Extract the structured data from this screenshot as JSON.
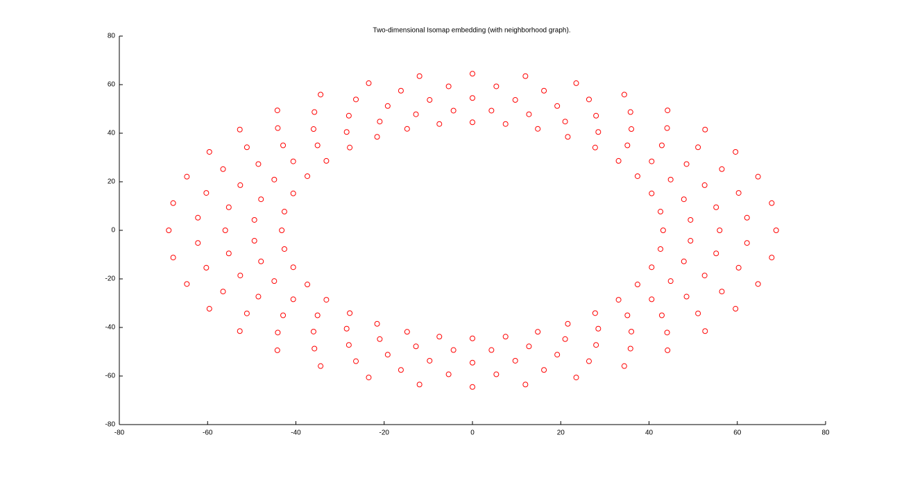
{
  "chart_data": {
    "type": "scatter",
    "title": "Two-dimensional Isomap embedding (with neighborhood graph).",
    "color": "#ff0000",
    "xlim": [
      -80,
      80
    ],
    "xticks": [
      -80,
      -60,
      -40,
      -20,
      0,
      20,
      40,
      60,
      80
    ],
    "ylim": [
      -80,
      80
    ],
    "yticks": [
      -80,
      -60,
      -40,
      -20,
      0,
      20,
      40,
      60,
      80
    ],
    "x": [
      43.2,
      42.6,
      40.6,
      37.4,
      33.1,
      27.8,
      21.6,
      14.8,
      7.5,
      49.4,
      47.9,
      44.9,
      40.6,
      35.1,
      28.5,
      21.0,
      12.8,
      4.3,
      56,
      55.2,
      52.6,
      48.5,
      42.9,
      36.0,
      28.0,
      19.2,
      9.7,
      62.2,
      60.3,
      56.5,
      51.1,
      44.1,
      35.8,
      26.4,
      16.2,
      5.4,
      68.8,
      67.8,
      64.7,
      59.6,
      52.7,
      44.2,
      34.4,
      23.5,
      12.0,
      -43.2,
      -42.6,
      -40.6,
      -37.4,
      -33.1,
      -27.8,
      -21.6,
      -14.8,
      -7.5,
      -49.4,
      -47.9,
      -44.9,
      -40.6,
      -35.1,
      -28.5,
      -21.0,
      -12.8,
      -4.3,
      -56,
      -55.2,
      -52.6,
      -48.5,
      -42.9,
      -36.0,
      -28.0,
      -19.2,
      -9.7,
      -62.2,
      -60.3,
      -56.5,
      -51.1,
      -44.1,
      -35.8,
      -26.4,
      -16.2,
      -5.4,
      -68.8,
      -67.8,
      -64.7,
      -59.6,
      -52.7,
      -44.2,
      -34.4,
      -23.5,
      -12.0,
      -42.6,
      -40.6,
      -37.4,
      -33.1,
      -27.8,
      -21.6,
      -14.8,
      -7.5,
      -49.4,
      -47.9,
      -44.9,
      -40.6,
      -35.1,
      -28.5,
      -21.0,
      -12.8,
      -4.3,
      -55.2,
      -52.6,
      -48.5,
      -42.9,
      -36.0,
      -28.0,
      -19.2,
      -9.7,
      -62.2,
      -60.3,
      -56.5,
      -51.1,
      -44.1,
      -35.8,
      -26.4,
      -16.2,
      -5.4,
      -67.8,
      -64.7,
      -59.6,
      -52.7,
      -44.2,
      -34.4,
      -23.5,
      -12.0,
      42.6,
      40.6,
      37.4,
      33.1,
      27.8,
      21.6,
      14.8,
      7.5,
      49.4,
      47.9,
      44.9,
      40.6,
      35.1,
      28.5,
      21.0,
      12.8,
      4.3,
      55.2,
      52.6,
      48.5,
      42.9,
      36.0,
      28.0,
      19.2,
      9.7,
      62.2,
      60.3,
      56.5,
      51.1,
      44.1,
      35.8,
      26.4,
      16.2,
      5.4,
      67.8,
      64.7,
      59.6,
      52.7,
      44.2,
      34.4,
      23.5,
      12.0,
      0,
      0,
      0,
      0,
      0,
      0
    ],
    "values": [
      0,
      7.7,
      15.2,
      22.3,
      28.6,
      34.1,
      38.5,
      41.8,
      43.8,
      4.3,
      12.8,
      20.9,
      28.4,
      35.0,
      40.5,
      44.8,
      47.8,
      49.3,
      0,
      9.5,
      18.6,
      27.3,
      35.0,
      41.7,
      47.2,
      51.2,
      53.7,
      5.2,
      15.4,
      25.2,
      34.2,
      42.1,
      48.7,
      53.9,
      57.5,
      59.3,
      0,
      11.2,
      22.1,
      32.3,
      41.5,
      49.4,
      55.9,
      60.6,
      63.5,
      0,
      7.7,
      15.2,
      22.3,
      28.6,
      34.1,
      38.5,
      41.8,
      43.8,
      4.3,
      12.8,
      20.9,
      28.4,
      35.0,
      40.5,
      44.8,
      47.8,
      49.3,
      0,
      9.5,
      18.6,
      27.3,
      35.0,
      41.7,
      47.2,
      51.2,
      53.7,
      5.2,
      15.4,
      25.2,
      34.2,
      42.1,
      48.7,
      53.9,
      57.5,
      59.3,
      0,
      11.2,
      22.1,
      32.3,
      41.5,
      49.4,
      55.9,
      60.6,
      63.5,
      -7.7,
      -15.2,
      -22.3,
      -28.6,
      -34.1,
      -38.5,
      -41.8,
      -43.8,
      -4.3,
      -12.8,
      -20.9,
      -28.4,
      -35.0,
      -40.5,
      -44.8,
      -47.8,
      -49.3,
      -9.5,
      -18.6,
      -27.3,
      -35.0,
      -41.7,
      -47.2,
      -51.2,
      -53.7,
      -5.2,
      -15.4,
      -25.2,
      -34.2,
      -42.1,
      -48.7,
      -53.9,
      -57.5,
      -59.3,
      -11.2,
      -22.1,
      -32.3,
      -41.5,
      -49.4,
      -55.9,
      -60.6,
      -63.5,
      -7.7,
      -15.2,
      -22.3,
      -28.6,
      -34.1,
      -38.5,
      -41.8,
      -43.8,
      -4.3,
      -12.8,
      -20.9,
      -28.4,
      -35.0,
      -40.5,
      -44.8,
      -47.8,
      -49.3,
      -9.5,
      -18.6,
      -27.3,
      -35.0,
      -41.7,
      -47.2,
      -51.2,
      -53.7,
      -5.2,
      -15.4,
      -25.2,
      -34.2,
      -42.1,
      -48.7,
      -53.9,
      -57.5,
      -59.3,
      -11.2,
      -22.1,
      -32.3,
      -41.5,
      -49.4,
      -55.9,
      -60.6,
      -63.5,
      44.5,
      54.5,
      64.5,
      -44.5,
      -54.5,
      -64.5
    ]
  }
}
